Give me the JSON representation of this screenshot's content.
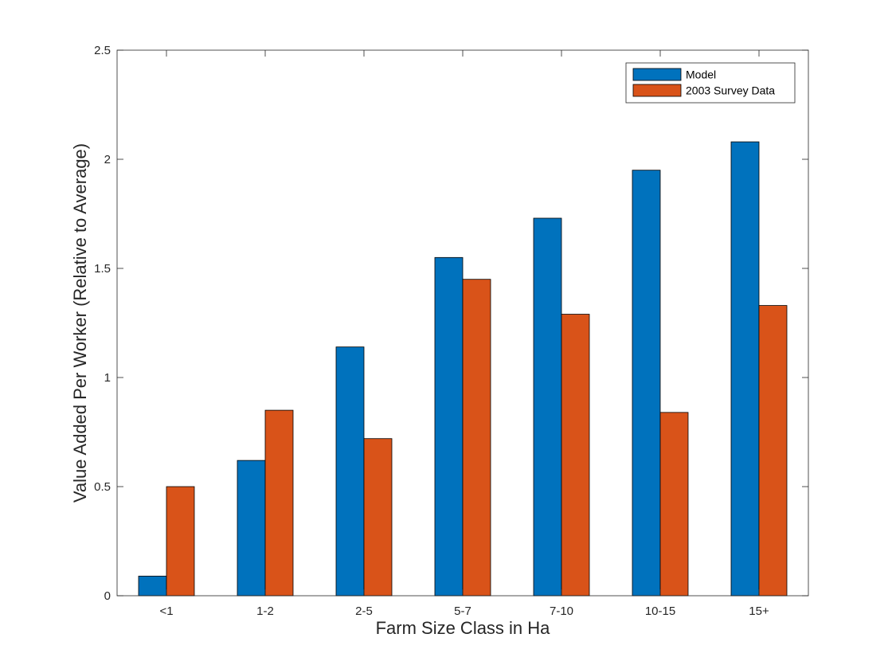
{
  "chart_data": {
    "type": "bar",
    "categories": [
      "<1",
      "1-2",
      "2-5",
      "5-7",
      "7-10",
      "10-15",
      "15+"
    ],
    "series": [
      {
        "name": "Model",
        "values": [
          0.09,
          0.62,
          1.14,
          1.55,
          1.73,
          1.95,
          2.08
        ],
        "color": "#0072BD"
      },
      {
        "name": "2003 Survey Data",
        "values": [
          0.5,
          0.85,
          0.72,
          1.45,
          1.29,
          0.84,
          1.33
        ],
        "color": "#D95319"
      }
    ],
    "xlabel": "Farm Size Class in Ha",
    "ylabel": "Value Added Per Worker (Relative to Average)",
    "ylim": [
      0,
      2.5
    ],
    "yticks": [
      0,
      0.5,
      1,
      1.5,
      2,
      2.5
    ],
    "ytick_labels": [
      "0",
      "0.5",
      "1",
      "1.5",
      "2",
      "2.5"
    ],
    "legend_position": "top-right",
    "grid": false
  }
}
